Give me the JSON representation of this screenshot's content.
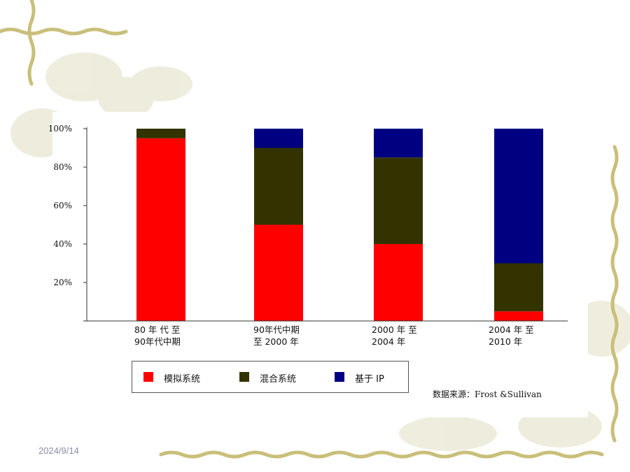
{
  "slide": {
    "date": "2024/9/14"
  },
  "chart_data": {
    "type": "bar",
    "stacked": true,
    "categories": [
      [
        "80  年 代 至",
        "90年代中期"
      ],
      [
        "90年代中期",
        "至 2000 年"
      ],
      [
        "2000   年 至",
        "2004 年"
      ],
      [
        "2004   年 至",
        "2010 年"
      ]
    ],
    "series": [
      {
        "name": "模拟系统",
        "color": "#ff0000",
        "values": [
          95,
          50,
          40,
          5
        ]
      },
      {
        "name": "混合系统",
        "color": "#333300",
        "values": [
          5,
          40,
          45,
          25
        ]
      },
      {
        "name": "基于 IP",
        "color": "#000080",
        "values": [
          0,
          10,
          15,
          70
        ]
      }
    ],
    "ylim": [
      0,
      100
    ],
    "yticks": [
      {
        "value": 20,
        "label": "20%"
      },
      {
        "value": 40,
        "label": "40%"
      },
      {
        "value": 60,
        "label": "60%"
      },
      {
        "value": 80,
        "label": "80%"
      },
      {
        "value": 100,
        "label": "100%"
      }
    ],
    "grid": false,
    "legend_position": "bottom",
    "source": "数据来源：Frost &Sullivan"
  }
}
